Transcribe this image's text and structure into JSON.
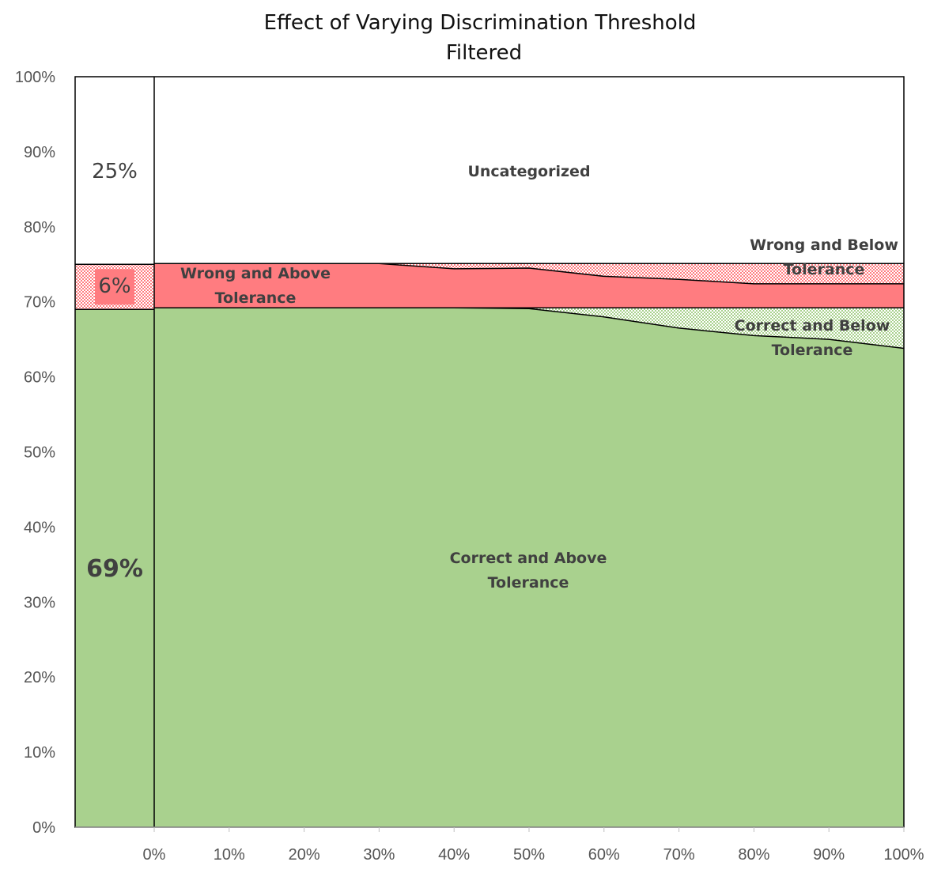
{
  "chart_data": {
    "type": "area",
    "title": "Effect of Varying Discrimination Threshold",
    "subtitle": "Filtered",
    "x": [
      0,
      10,
      20,
      30,
      40,
      50,
      60,
      70,
      80,
      90,
      100
    ],
    "x_tick_labels": [
      "0%",
      "10%",
      "20%",
      "30%",
      "40%",
      "50%",
      "60%",
      "70%",
      "80%",
      "90%",
      "100%"
    ],
    "y_tick_labels": [
      "0%",
      "10%",
      "20%",
      "30%",
      "40%",
      "50%",
      "60%",
      "70%",
      "80%",
      "90%",
      "100%"
    ],
    "ylim": [
      0,
      100
    ],
    "xlim": [
      0,
      100
    ],
    "stacked": true,
    "series": [
      {
        "name": "Correct and Above Tolerance",
        "color": "#a9d18e",
        "pattern": "solid",
        "values": [
          69.2,
          69.2,
          69.2,
          69.2,
          69.2,
          69.1,
          68.0,
          66.5,
          65.5,
          65.0,
          63.8
        ]
      },
      {
        "name": "Correct and Below Tolerance",
        "color": "#a9d18e",
        "pattern": "checker",
        "values": [
          0.0,
          0.0,
          0.0,
          0.0,
          0.0,
          0.1,
          1.2,
          2.7,
          3.7,
          4.2,
          5.4
        ]
      },
      {
        "name": "Wrong and Above Tolerance",
        "color": "#ff7c80",
        "pattern": "solid",
        "values": [
          5.9,
          5.9,
          5.9,
          5.9,
          5.2,
          5.3,
          4.2,
          3.8,
          3.2,
          3.2,
          3.2
        ]
      },
      {
        "name": "Wrong and Below Tolerance",
        "color": "#ff7c80",
        "pattern": "checker",
        "values": [
          0.0,
          0.0,
          0.0,
          0.0,
          0.7,
          0.6,
          1.7,
          2.1,
          2.7,
          2.7,
          2.7
        ]
      },
      {
        "name": "Uncategorized",
        "color": "#ffffff",
        "pattern": "solid",
        "values": [
          24.9,
          24.9,
          24.9,
          24.9,
          24.9,
          24.9,
          24.9,
          24.9,
          24.9,
          24.9,
          24.9
        ]
      }
    ],
    "baseline_column": {
      "values": [
        69,
        6,
        25
      ],
      "colors": [
        "#a9d18e",
        "#ff7c80",
        "#ffffff"
      ],
      "labels": [
        "69%",
        "6%",
        "25%"
      ]
    },
    "region_labels": [
      {
        "series": "Uncategorized",
        "lines": [
          "Uncategorized"
        ]
      },
      {
        "series": "Wrong and Above Tolerance",
        "lines": [
          "Wrong and Above",
          "Tolerance"
        ]
      },
      {
        "series": "Wrong and Below Tolerance",
        "lines": [
          "Wrong and Below",
          "Tolerance"
        ]
      },
      {
        "series": "Correct and Below Tolerance",
        "lines": [
          "Correct and Below",
          "Tolerance"
        ]
      },
      {
        "series": "Correct and Above Tolerance",
        "lines": [
          "Correct and Above",
          "Tolerance"
        ]
      }
    ],
    "grid": false,
    "legend": "none"
  }
}
